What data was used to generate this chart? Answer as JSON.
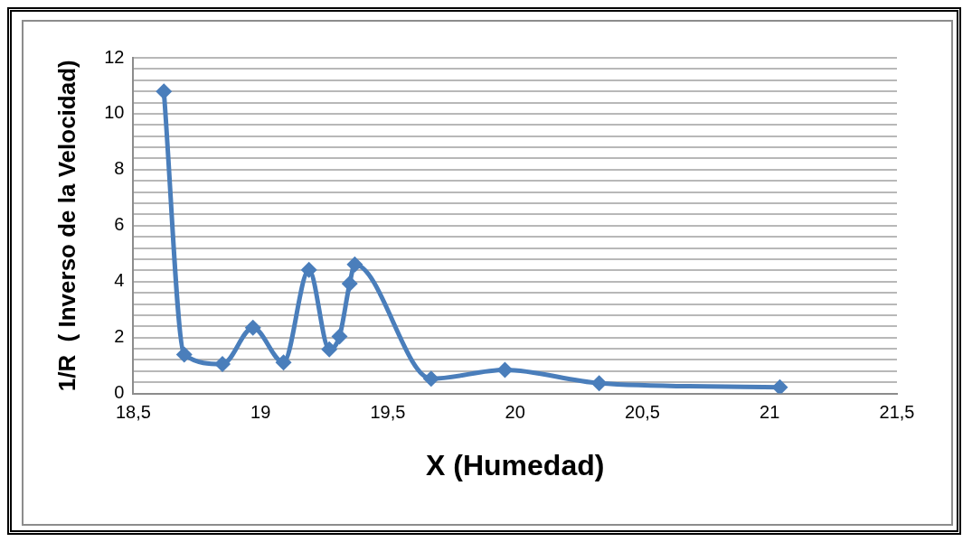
{
  "chart_data": {
    "type": "line",
    "xlabel": "X (Humedad)",
    "ylabel": "1/R  ( Inverso de la Velocidad)",
    "x": [
      18.62,
      18.7,
      18.85,
      18.97,
      19.09,
      19.19,
      19.27,
      19.31,
      19.35,
      19.37,
      19.67,
      19.96,
      20.33,
      21.04
    ],
    "series": [
      {
        "color": "#4a7ebb",
        "values": [
          10.8,
          1.39,
          1.05,
          2.35,
          1.11,
          4.42,
          1.58,
          2.04,
          3.93,
          4.61,
          0.53,
          0.84,
          0.37,
          0.22
        ]
      }
    ],
    "xlim": [
      18.5,
      21.5
    ],
    "xticks": [
      {
        "value": 18.5,
        "label": "18,5"
      },
      19,
      {
        "value": 19.5,
        "label": "19,5"
      },
      20,
      {
        "value": 20.5,
        "label": "20,5"
      },
      21,
      {
        "value": 21.5,
        "label": "21,5"
      }
    ],
    "ylim": [
      0,
      12
    ],
    "yticks": [
      0,
      {
        "value": 0.4,
        "label": null
      },
      {
        "value": 0.8,
        "label": null
      },
      {
        "value": 1.2,
        "label": null
      },
      {
        "value": 1.6,
        "label": null
      },
      2,
      {
        "value": 2.4,
        "label": null
      },
      {
        "value": 2.8,
        "label": null
      },
      {
        "value": 3.2,
        "label": null
      },
      {
        "value": 3.6,
        "label": null
      },
      4,
      {
        "value": 4.4,
        "label": null
      },
      {
        "value": 4.8,
        "label": null
      },
      {
        "value": 5.2,
        "label": null
      },
      {
        "value": 5.6,
        "label": null
      },
      6,
      {
        "value": 6.4,
        "label": null
      },
      {
        "value": 6.8,
        "label": null
      },
      {
        "value": 7.2,
        "label": null
      },
      {
        "value": 7.6,
        "label": null
      },
      8,
      {
        "value": 8.4,
        "label": null
      },
      {
        "value": 8.8,
        "label": null
      },
      {
        "value": 9.2,
        "label": null
      },
      {
        "value": 9.6,
        "label": null
      },
      10,
      {
        "value": 10.4,
        "label": null
      },
      {
        "value": 10.8,
        "label": null
      },
      {
        "value": 11.2,
        "label": null
      },
      {
        "value": 11.6,
        "label": null
      },
      12
    ],
    "grid": "y",
    "legend": false,
    "marker": "diamond",
    "line_style": "solid"
  }
}
